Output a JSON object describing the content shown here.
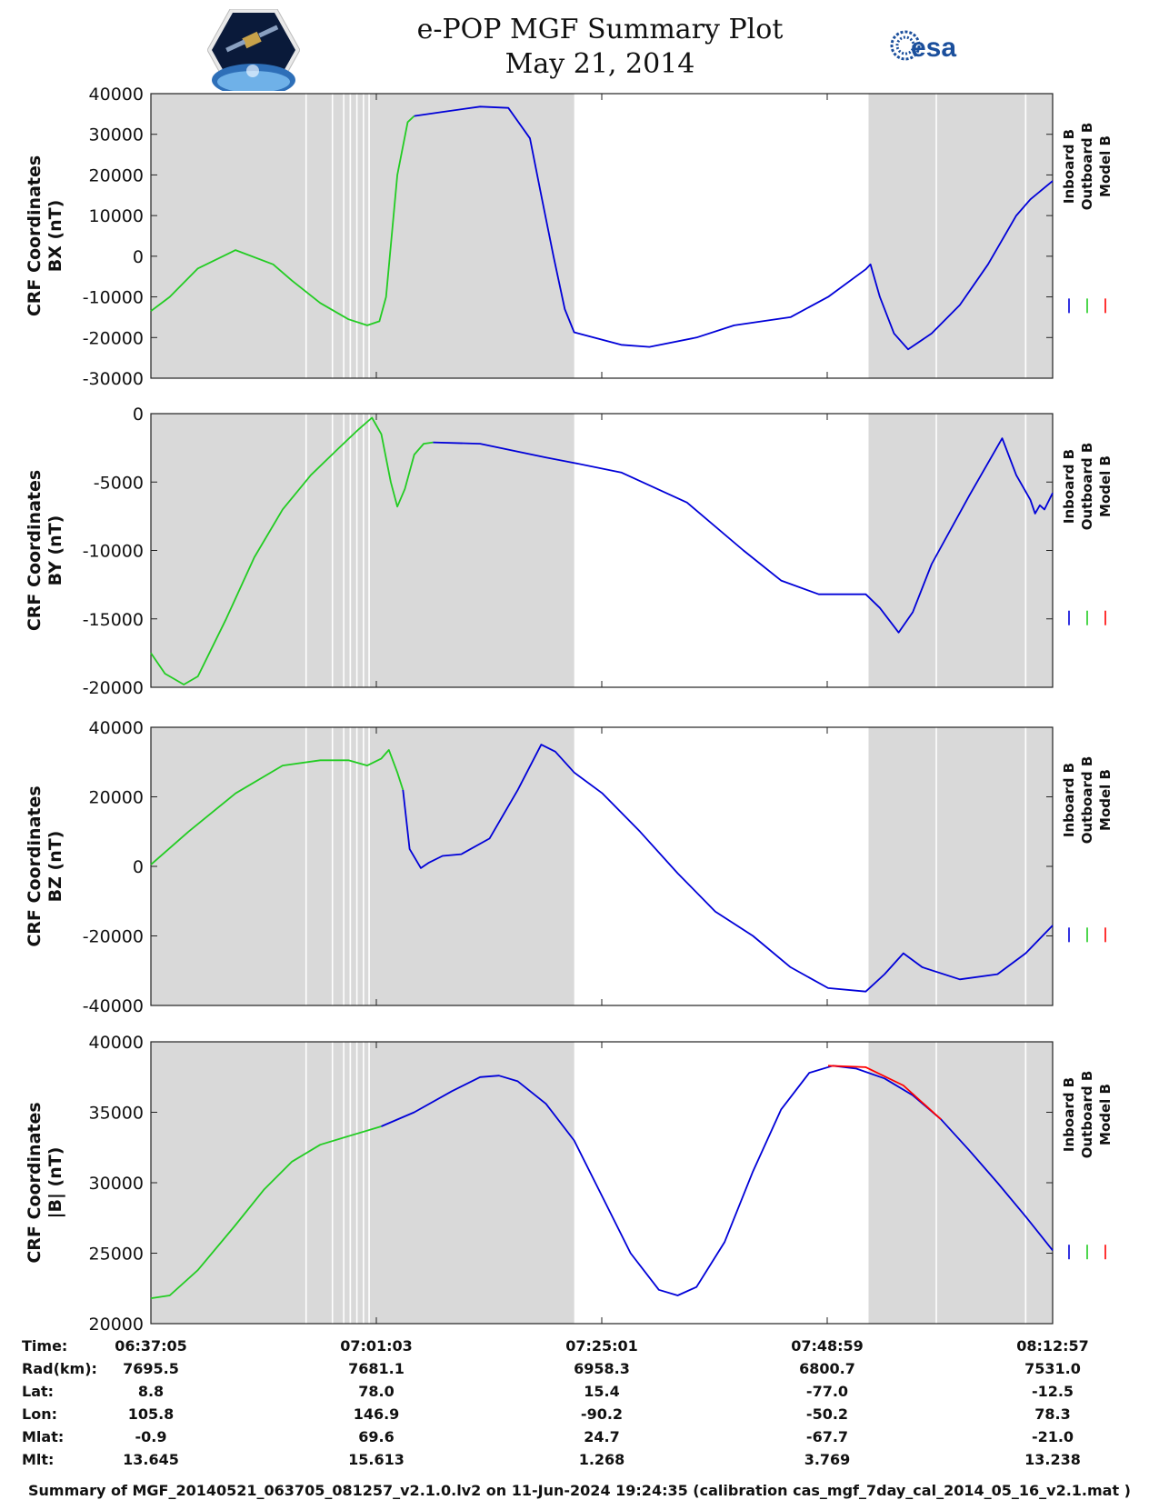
{
  "title": {
    "line1": "e-POP MGF Summary Plot",
    "line2": "May 21, 2014",
    "logo_left": "CASSIOPE satellite logo",
    "logo_right": "esa"
  },
  "colors": {
    "inboard": "#0000d8",
    "outboard": "#22cc22",
    "model": "#ff0000",
    "shade": "#d9d9d9"
  },
  "legend": [
    "Inboard B",
    "Outboard B",
    "Model B"
  ],
  "time_axis": {
    "ticks": [
      "06:37:05",
      "07:01:03",
      "07:25:01",
      "07:48:59",
      "08:12:57"
    ],
    "tick_minutes": [
      0,
      23.967,
      47.933,
      71.9,
      95.867
    ],
    "range_minutes": [
      0,
      95.867
    ]
  },
  "shading": {
    "regions_minutes": [
      [
        0,
        45.0
      ],
      [
        76.3,
        95.867
      ]
    ],
    "white_lines_minutes": [
      16.5,
      19.3,
      20.5,
      21.2,
      21.9,
      22.6,
      23.2,
      83.5,
      93.0
    ]
  },
  "chart_data": [
    {
      "type": "line",
      "ylabel": [
        "CRF Coordinates",
        "BX (nT)"
      ],
      "ylim": [
        -30000,
        40000
      ],
      "yticks": [
        "40000",
        "30000",
        "20000",
        "10000",
        "0",
        "-10000",
        "-20000",
        "-30000"
      ],
      "ytick_values": [
        40000,
        30000,
        20000,
        10000,
        0,
        -10000,
        -20000,
        -30000
      ],
      "series": [
        {
          "name": "Outboard B",
          "x": [
            0,
            2,
            5,
            9,
            13,
            15,
            18,
            21,
            23,
            24.3,
            25,
            26.2,
            27.3,
            28
          ],
          "y": [
            -13500,
            -10000,
            -3000,
            1500,
            -2000,
            -6000,
            -11500,
            -15500,
            -17000,
            -16000,
            -10000,
            20000,
            33000,
            34500
          ]
        },
        {
          "name": "Inboard B",
          "x": [
            28,
            31,
            35,
            38,
            40.3,
            41.5,
            42.8,
            44,
            45,
            50,
            53,
            58,
            62,
            68,
            72,
            76,
            76.5,
            77.5,
            79,
            80.5,
            83,
            86,
            89,
            92,
            93.5,
            95.867
          ],
          "y": [
            34500,
            35500,
            36800,
            36500,
            29000,
            15000,
            0,
            -13000,
            -18700,
            -21800,
            -22300,
            -20000,
            -17000,
            -15000,
            -10000,
            -3200,
            -2000,
            -10000,
            -19000,
            -22900,
            -19000,
            -12000,
            -2000,
            10000,
            14000,
            18500
          ]
        }
      ]
    },
    {
      "type": "line",
      "ylabel": [
        "CRF Coordinates",
        "BY (nT)"
      ],
      "ylim": [
        -20000,
        0
      ],
      "yticks": [
        "0",
        "-5000",
        "-10000",
        "-15000",
        "-20000"
      ],
      "ytick_values": [
        0,
        -5000,
        -10000,
        -15000,
        -20000
      ],
      "series": [
        {
          "name": "Outboard B",
          "x": [
            0,
            1.5,
            3.5,
            5,
            8,
            11,
            14,
            17,
            20,
            22,
            23.5,
            24.5,
            25.5,
            26.2,
            27,
            28,
            29,
            30
          ],
          "y": [
            -17500,
            -19000,
            -19800,
            -19200,
            -15000,
            -10500,
            -7000,
            -4500,
            -2500,
            -1200,
            -300,
            -1500,
            -5000,
            -6800,
            -5500,
            -3000,
            -2200,
            -2100
          ]
        },
        {
          "name": "Inboard B",
          "x": [
            30,
            35,
            42,
            45,
            50,
            57,
            63,
            67,
            71,
            73,
            76,
            77.5,
            79.5,
            81,
            83,
            87,
            90.5,
            92,
            93.5,
            94,
            94.5,
            95,
            95.867
          ],
          "y": [
            -2100,
            -2200,
            -3200,
            -3600,
            -4300,
            -6500,
            -10000,
            -12200,
            -13200,
            -13200,
            -13200,
            -14200,
            -16000,
            -14500,
            -11000,
            -6000,
            -1800,
            -4500,
            -6300,
            -7300,
            -6700,
            -7000,
            -5800
          ]
        }
      ]
    },
    {
      "type": "line",
      "ylabel": [
        "CRF Coordinates",
        "BZ (nT)"
      ],
      "ylim": [
        -40000,
        40000
      ],
      "yticks": [
        "40000",
        "20000",
        "0",
        "-20000",
        "-40000"
      ],
      "ytick_values": [
        40000,
        20000,
        0,
        -20000,
        -40000
      ],
      "series": [
        {
          "name": "Outboard B",
          "x": [
            0,
            4,
            9,
            14,
            18,
            21,
            23,
            24.5,
            25.3,
            26.2,
            26.8
          ],
          "y": [
            500,
            10000,
            21000,
            29000,
            30500,
            30500,
            29000,
            31000,
            33500,
            27000,
            22000
          ]
        },
        {
          "name": "Inboard B",
          "x": [
            26.8,
            27.5,
            28.7,
            29.5,
            31,
            33,
            36,
            39,
            41.5,
            43,
            45,
            48,
            52,
            56,
            60,
            64,
            68,
            72,
            76,
            78,
            80,
            82,
            86,
            90,
            93,
            95.867
          ],
          "y": [
            22000,
            5000,
            -500,
            1000,
            3000,
            3500,
            8000,
            22000,
            35000,
            33000,
            27000,
            21000,
            10000,
            -2000,
            -13000,
            -20000,
            -29000,
            -35000,
            -36000,
            -31000,
            -25000,
            -29000,
            -32500,
            -31000,
            -25000,
            -17000
          ]
        }
      ]
    },
    {
      "type": "line",
      "ylabel": [
        "CRF Coordinates",
        "|B| (nT)"
      ],
      "ylim": [
        20000,
        40000
      ],
      "yticks": [
        "40000",
        "35000",
        "30000",
        "25000",
        "20000"
      ],
      "ytick_values": [
        40000,
        35000,
        30000,
        25000,
        20000
      ],
      "series": [
        {
          "name": "Outboard B",
          "x": [
            0,
            2,
            5,
            9,
            12,
            15,
            18,
            21,
            24.5
          ],
          "y": [
            21800,
            22000,
            23800,
            27000,
            29500,
            31500,
            32700,
            33300,
            34000
          ]
        },
        {
          "name": "Inboard B",
          "x": [
            24.5,
            28,
            32,
            35,
            37,
            39,
            42,
            45,
            48,
            51,
            54,
            56,
            58,
            61,
            64,
            67,
            70,
            72.5,
            75,
            78,
            81,
            84,
            87,
            90,
            93,
            95.867
          ],
          "y": [
            34000,
            35000,
            36500,
            37500,
            37600,
            37200,
            35600,
            33000,
            29000,
            25000,
            22400,
            22000,
            22600,
            25800,
            30800,
            35200,
            37800,
            38300,
            38100,
            37400,
            36200,
            34500,
            32300,
            30000,
            27600,
            25200
          ]
        },
        {
          "name": "Model B",
          "x": [
            72,
            76,
            80,
            84
          ],
          "y": [
            38300,
            38200,
            36900,
            34500
          ]
        }
      ]
    }
  ],
  "ephemeris": {
    "labels": [
      "Time:",
      "Rad(km):",
      "Lat:",
      "Lon:",
      "Mlat:",
      "Mlt:"
    ],
    "columns": [
      [
        "06:37:05",
        "7695.5",
        "8.8",
        "105.8",
        "-0.9",
        "13.645"
      ],
      [
        "07:01:03",
        "7681.1",
        "78.0",
        "146.9",
        "69.6",
        "15.613"
      ],
      [
        "07:25:01",
        "6958.3",
        "15.4",
        "-90.2",
        "24.7",
        "1.268"
      ],
      [
        "07:48:59",
        "6800.7",
        "-77.0",
        "-50.2",
        "-67.7",
        "3.769"
      ],
      [
        "08:12:57",
        "7531.0",
        "-12.5",
        "78.3",
        "-21.0",
        "13.238"
      ]
    ]
  },
  "footer": "Summary of MGF_20140521_063705_081257_v2.1.0.lv2 on 11-Jun-2024 19:24:35 (calibration cas_mgf_7day_cal_2014_05_16_v2.1.mat )"
}
